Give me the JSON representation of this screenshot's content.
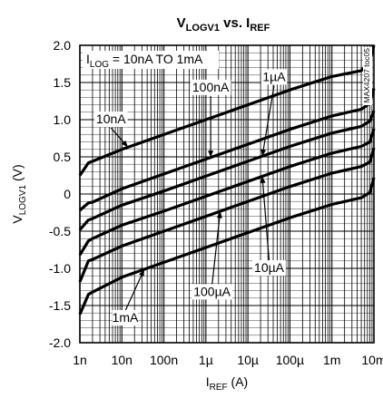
{
  "chart_data": {
    "type": "line",
    "title": {
      "main": "V",
      "sub": "LOGV1",
      "mid": " vs. I",
      "sub2": "REF"
    },
    "xlabel": {
      "main": "I",
      "sub": "REF",
      "unit": " (A)"
    },
    "ylabel": {
      "main": "V",
      "sub": "LOGV1",
      "unit": " (V)"
    },
    "x_scale": "log",
    "xlim": [
      1e-09,
      0.01
    ],
    "ylim": [
      -2.0,
      2.0
    ],
    "grid": true,
    "x_ticks": [
      {
        "value": 1e-09,
        "label": "1n"
      },
      {
        "value": 1e-08,
        "label": "10n"
      },
      {
        "value": 1e-07,
        "label": "100n"
      },
      {
        "value": 1e-06,
        "label": "1µ"
      },
      {
        "value": 1e-05,
        "label": "10µ"
      },
      {
        "value": 0.0001,
        "label": "100µ"
      },
      {
        "value": 0.001,
        "label": "1m"
      },
      {
        "value": 0.01,
        "label": "10m"
      }
    ],
    "y_ticks": [
      {
        "value": 2.0,
        "label": "2.0"
      },
      {
        "value": 1.5,
        "label": "1.5"
      },
      {
        "value": 1.0,
        "label": "1.0"
      },
      {
        "value": 0.5,
        "label": "0.5"
      },
      {
        "value": 0,
        "label": "0"
      },
      {
        "value": -0.5,
        "label": "-0.5"
      },
      {
        "value": -1.0,
        "label": "-1.0"
      },
      {
        "value": -1.5,
        "label": "-1.5"
      },
      {
        "value": -2.0,
        "label": "-2.0"
      }
    ],
    "legend_box": {
      "main": "I",
      "sub": "LOG",
      "rest": " = 10nA TO 1mA"
    },
    "side_tag": "MAX4207 toc05",
    "series": [
      {
        "name": "10nA",
        "label": "10nA",
        "x": [
          1e-09,
          1.6e-09,
          2e-09,
          1e-08,
          1e-07,
          1e-06,
          1e-05,
          0.0001,
          0.001,
          0.005,
          0.008,
          0.01
        ],
        "y": [
          0.25,
          0.42,
          0.44,
          0.6,
          0.8,
          1.0,
          1.2,
          1.4,
          1.58,
          1.66,
          1.78,
          2.0
        ]
      },
      {
        "name": "100nA",
        "label": "100nA",
        "x": [
          1e-09,
          1.6e-09,
          2e-09,
          1e-08,
          1e-07,
          1e-06,
          1e-05,
          0.0001,
          0.001,
          0.005,
          0.008,
          0.01
        ],
        "y": [
          -0.22,
          -0.12,
          -0.11,
          0.07,
          0.27,
          0.47,
          0.67,
          0.87,
          1.05,
          1.14,
          1.22,
          1.42
        ]
      },
      {
        "name": "1µA",
        "label": "1µA",
        "x": [
          1e-09,
          1.6e-09,
          2e-09,
          1e-08,
          1e-07,
          1e-06,
          1e-05,
          0.0001,
          0.001,
          0.005,
          0.008,
          0.01
        ],
        "y": [
          -0.48,
          -0.35,
          -0.33,
          -0.15,
          0.04,
          0.24,
          0.44,
          0.64,
          0.82,
          0.91,
          0.98,
          1.12
        ]
      },
      {
        "name": "10µA",
        "label": "10µA",
        "x": [
          1e-09,
          1.6e-09,
          2e-09,
          1e-08,
          1e-07,
          1e-06,
          1e-05,
          0.0001,
          0.001,
          0.005,
          0.008,
          0.01
        ],
        "y": [
          -0.82,
          -0.63,
          -0.6,
          -0.42,
          -0.23,
          -0.03,
          0.17,
          0.37,
          0.55,
          0.64,
          0.7,
          0.88
        ]
      },
      {
        "name": "100µA",
        "label": "100µA",
        "x": [
          1e-09,
          1.6e-09,
          2e-09,
          1e-08,
          1e-07,
          1e-06,
          1e-05,
          0.0001,
          0.001,
          0.005,
          0.008,
          0.01
        ],
        "y": [
          -1.18,
          -0.9,
          -0.88,
          -0.7,
          -0.5,
          -0.3,
          -0.1,
          0.1,
          0.28,
          0.37,
          0.43,
          0.62
        ]
      },
      {
        "name": "1mA",
        "label": "1mA",
        "x": [
          1e-09,
          1.6e-09,
          2e-09,
          1e-08,
          1e-07,
          1e-06,
          1e-05,
          0.0001,
          0.001,
          0.005,
          0.008,
          0.01
        ],
        "y": [
          -1.62,
          -1.35,
          -1.32,
          -1.12,
          -0.92,
          -0.72,
          -0.52,
          -0.32,
          -0.14,
          -0.05,
          0.02,
          0.22
        ]
      }
    ],
    "annotations": [
      {
        "text": "10nA",
        "series": "10nA",
        "at_x": 1.4e-08,
        "text_x": 5.5e-09,
        "text_y": 0.95
      },
      {
        "text": "100nA",
        "series": "100nA",
        "at_x": 1.3e-06,
        "text_x": 1.3e-06,
        "text_y": 1.38
      },
      {
        "text": "1µA",
        "series": "1µA",
        "at_x": 2.2e-05,
        "text_x": 4.2e-05,
        "text_y": 1.52
      },
      {
        "text": "10µA",
        "series": "10µA",
        "at_x": 2.2e-05,
        "text_x": 3.2e-05,
        "text_y": -1.05
      },
      {
        "text": "100µA",
        "series": "100µA",
        "at_x": 2.2e-06,
        "text_x": 1.4e-06,
        "text_y": -1.37
      },
      {
        "text": "1mA",
        "series": "1mA",
        "at_x": 3.4e-08,
        "text_x": 1.2e-08,
        "text_y": -1.72
      }
    ]
  }
}
